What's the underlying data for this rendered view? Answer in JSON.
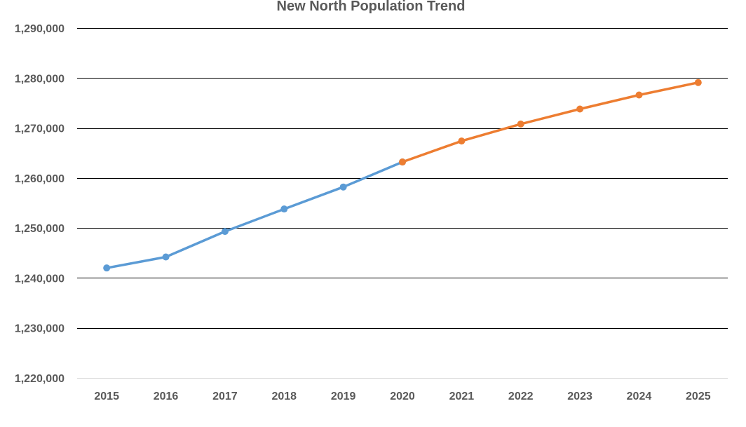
{
  "chart_data": {
    "type": "line",
    "title": "New North Population Trend",
    "xlabel": "",
    "ylabel": "",
    "categories": [
      "2015",
      "2016",
      "2017",
      "2018",
      "2019",
      "2020",
      "2021",
      "2022",
      "2023",
      "2024",
      "2025"
    ],
    "ylim": [
      1220000,
      1290000
    ],
    "y_ticks": [
      1290000,
      1280000,
      1270000,
      1260000,
      1250000,
      1240000,
      1230000,
      1220000
    ],
    "y_tick_labels": [
      "1,290,000",
      "1,280,000",
      "1,270,000",
      "1,260,000",
      "1,250,000",
      "1,240,000",
      "1,230,000",
      "1,220,000"
    ],
    "grid": true,
    "legend": "none",
    "series": [
      {
        "color": "#5b9bd5",
        "x": [
          "2015",
          "2016",
          "2017",
          "2018",
          "2019",
          "2020"
        ],
        "values": [
          1242000,
          1244200,
          1249300,
          1253800,
          1258200,
          1263200
        ]
      },
      {
        "color": "#ed7d31",
        "x": [
          "2020",
          "2021",
          "2022",
          "2023",
          "2024",
          "2025"
        ],
        "values": [
          1263200,
          1267400,
          1270800,
          1273800,
          1276600,
          1279100
        ]
      }
    ]
  }
}
